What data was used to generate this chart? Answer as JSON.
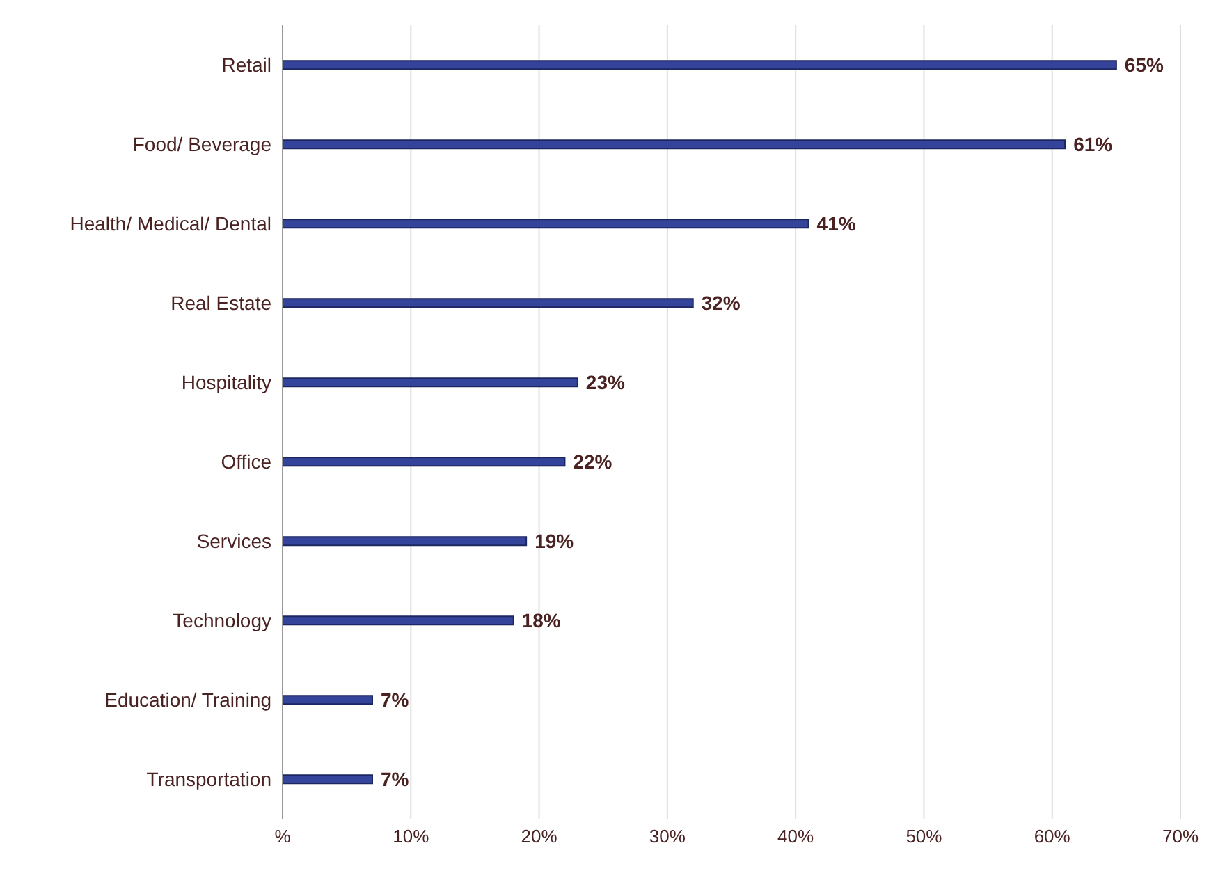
{
  "chart_data": {
    "type": "bar",
    "orientation": "horizontal",
    "categories": [
      "Retail",
      "Food/ Beverage",
      "Health/ Medical/ Dental",
      "Real Estate",
      "Hospitality",
      "Office",
      "Services",
      "Technology",
      "Education/ Training",
      "Transportation"
    ],
    "values": [
      65,
      61,
      41,
      32,
      23,
      22,
      19,
      18,
      7,
      7
    ],
    "value_labels": [
      "65%",
      "61%",
      "41%",
      "32%",
      "23%",
      "22%",
      "19%",
      "18%",
      "7%",
      "7%"
    ],
    "color": "#34449a",
    "xlim": [
      0,
      70
    ],
    "xticks": [
      {
        "value": 0,
        "label": "%"
      },
      {
        "value": 10,
        "label": "10%"
      },
      {
        "value": 20,
        "label": "20%"
      },
      {
        "value": 30,
        "label": "30%"
      },
      {
        "value": 40,
        "label": "40%"
      },
      {
        "value": 50,
        "label": "50%"
      },
      {
        "value": 60,
        "label": "60%"
      },
      {
        "value": 70,
        "label": "70%"
      }
    ],
    "grid": "x",
    "legend": false
  }
}
